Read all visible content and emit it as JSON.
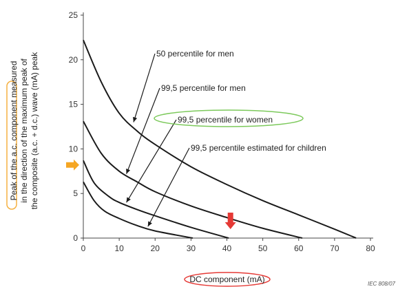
{
  "chart_data": {
    "type": "line",
    "title": "",
    "xlabel": "DC component   (mA)",
    "ylabel_lines": [
      "Peak of the a.c. component measured",
      "in the direction of the maximum peak of",
      "the composite (a.c. + d.c.) wave (mA) peak"
    ],
    "xlim": [
      0,
      80
    ],
    "ylim": [
      0,
      25
    ],
    "x_ticks": [
      "0",
      "10",
      "20",
      "30",
      "40",
      "50",
      "60",
      "70",
      "80"
    ],
    "y_ticks": [
      "0",
      "5",
      "10",
      "15",
      "20",
      "25"
    ],
    "grid": false,
    "series": [
      {
        "name": "50 percentile for men",
        "x": [
          0,
          5,
          10,
          15,
          20,
          30,
          40,
          50,
          60,
          70,
          76
        ],
        "y": [
          22.2,
          17.5,
          14.0,
          12.0,
          10.5,
          8.0,
          6.0,
          4.2,
          2.6,
          1.0,
          0
        ]
      },
      {
        "name": "99,5 percentile for men",
        "x": [
          0,
          5,
          10,
          15,
          20,
          30,
          40,
          50,
          61
        ],
        "y": [
          13.1,
          9.5,
          7.5,
          6.3,
          5.2,
          3.6,
          2.3,
          1.1,
          0
        ]
      },
      {
        "name": "99,5 percentile for women",
        "x": [
          0,
          3,
          7,
          10,
          15,
          20,
          30,
          40.5
        ],
        "y": [
          8.7,
          6.2,
          4.7,
          4.0,
          3.2,
          2.5,
          1.2,
          0
        ]
      },
      {
        "name": "99,5 percentile estimated for children",
        "x": [
          0,
          3,
          6,
          10,
          15,
          20,
          30.5
        ],
        "y": [
          6.3,
          4.2,
          3.0,
          2.2,
          1.4,
          0.8,
          0
        ]
      }
    ],
    "annotations": [
      {
        "text": "50 percentile for men",
        "target": [
          14,
          13
        ]
      },
      {
        "text": "99,5 percentile for men",
        "target": [
          12,
          7.2
        ]
      },
      {
        "text": "99,5 percentile for women",
        "target": [
          12,
          4.0
        ]
      },
      {
        "text": "99,5 percentile estimated for children",
        "target": [
          18,
          1.3
        ]
      }
    ],
    "markers": {
      "y_arrow_value": 8.2,
      "x_arrow_value": 41,
      "x_arrow_y_value": 1.0,
      "arrow_colors": {
        "yellow": "#f5a623",
        "red": "#e53935"
      },
      "highlight_colors": {
        "green": "#7cc95b",
        "orange": "#f5b041",
        "red": "#e53935"
      }
    },
    "credit": "IEC   808/07"
  }
}
